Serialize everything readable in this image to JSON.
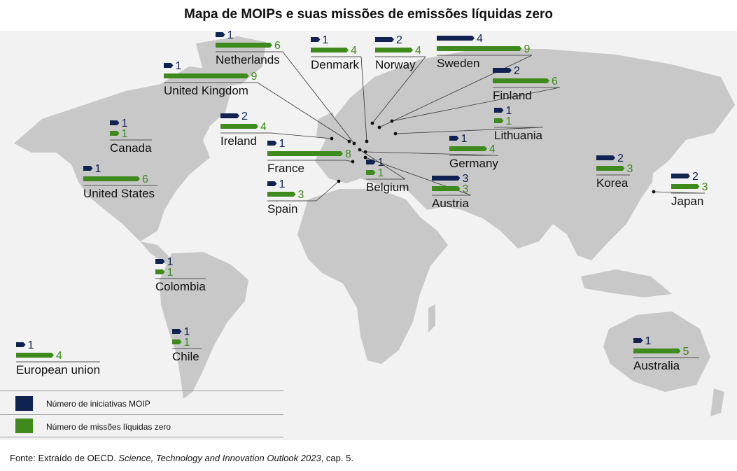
{
  "title": "Mapa de MOIPs e suas missões de emissões líquidas zero",
  "legend": {
    "moip_label": "Número de iniciativas MOIP",
    "missions_label": "Número de missões líquidas zero"
  },
  "colors": {
    "moip": "#0f2251",
    "missions": "#3f8a1c",
    "land": "#c8c8c8",
    "ocean": "#f2f2f2"
  },
  "source": {
    "prefix": "Fonte: Extraído de OECD. ",
    "title": "Science, Technology and Innovation Outlook 2023",
    "suffix": ", cap. 5."
  },
  "countries": [
    {
      "name": "Netherlands",
      "moip": 1,
      "missions": 6
    },
    {
      "name": "Denmark",
      "moip": 1,
      "missions": 4
    },
    {
      "name": "Norway",
      "moip": 2,
      "missions": 4
    },
    {
      "name": "Sweden",
      "moip": 4,
      "missions": 9
    },
    {
      "name": "United Kingdom",
      "moip": 1,
      "missions": 9
    },
    {
      "name": "Finland",
      "moip": 2,
      "missions": 6
    },
    {
      "name": "Lithuania",
      "moip": 1,
      "missions": 1
    },
    {
      "name": "Canada",
      "moip": 1,
      "missions": 1
    },
    {
      "name": "Ireland",
      "moip": 2,
      "missions": 4
    },
    {
      "name": "France",
      "moip": 1,
      "missions": 8
    },
    {
      "name": "Germany",
      "moip": 1,
      "missions": 4
    },
    {
      "name": "Belgium",
      "moip": 1,
      "missions": 1
    },
    {
      "name": "United States",
      "moip": 1,
      "missions": 6
    },
    {
      "name": "Spain",
      "moip": 1,
      "missions": 3
    },
    {
      "name": "Austria",
      "moip": 3,
      "missions": 3
    },
    {
      "name": "Korea",
      "moip": 2,
      "missions": 3
    },
    {
      "name": "Japan",
      "moip": 2,
      "missions": 3
    },
    {
      "name": "Colombia",
      "moip": 1,
      "missions": 1
    },
    {
      "name": "European union",
      "moip": 1,
      "missions": 4
    },
    {
      "name": "Chile",
      "moip": 1,
      "missions": 1
    },
    {
      "name": "Australia",
      "moip": 1,
      "missions": 5
    }
  ]
}
